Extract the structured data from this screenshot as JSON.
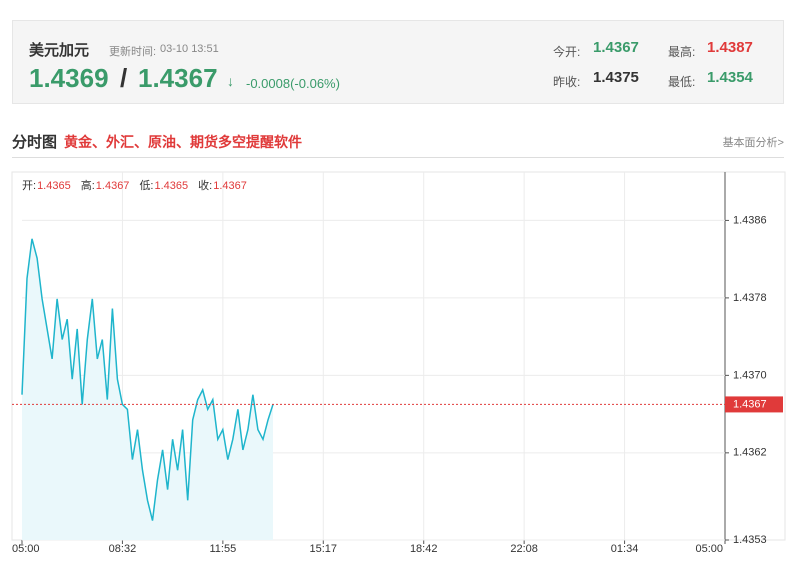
{
  "header": {
    "name": "美元加元",
    "update_label": "更新时间:",
    "update_time": "03-10 13:51",
    "bid": "1.4369",
    "sep": "/",
    "ask": "1.4367",
    "arrow": "↓",
    "change": "-0.0008(-0.06%)",
    "stats": [
      {
        "label": "今开:",
        "value": "1.4367"
      },
      {
        "label": "最高:",
        "value": "1.4387"
      },
      {
        "label": "昨收:",
        "value": "1.4375"
      },
      {
        "label": "最低:",
        "value": "1.4354"
      }
    ]
  },
  "section": {
    "title": "分时图",
    "promo": "黄金、外汇、原油、期货多空提醒软件",
    "link": "基本面分析>"
  },
  "chart_data": {
    "type": "line",
    "legend": [
      {
        "label": "开:",
        "value": "1.4365"
      },
      {
        "label": "高:",
        "value": "1.4367"
      },
      {
        "label": "低:",
        "value": "1.4365"
      },
      {
        "label": "收:",
        "value": "1.4367"
      }
    ],
    "series": [
      {
        "color": "#1fb5cc",
        "values": [
          1.4368,
          1.438,
          1.43841,
          1.43821,
          1.43779,
          1.43748,
          1.43717,
          1.43779,
          1.43737,
          1.43758,
          1.43696,
          1.43748,
          1.4367,
          1.43737,
          1.43779,
          1.43717,
          1.43737,
          1.43675,
          1.43769,
          1.43696,
          1.4367,
          1.43665,
          1.43613,
          1.43644,
          1.43602,
          1.43571,
          1.4355,
          1.43592,
          1.43623,
          1.43582,
          1.43634,
          1.43602,
          1.43644,
          1.43571,
          1.43654,
          1.43675,
          1.43685,
          1.43665,
          1.43675,
          1.43634,
          1.43644,
          1.43613,
          1.43634,
          1.43665,
          1.43623,
          1.43644,
          1.4368,
          1.43644,
          1.43634,
          1.43654,
          1.4367
        ]
      }
    ],
    "ylim": [
      1.4353,
      1.4391
    ],
    "yticks": [
      1.4386,
      1.4378,
      {
        "value": 1.437,
        "label": "1.4370"
      },
      1.4362,
      1.4353
    ],
    "xticks": [
      "05:00",
      "08:32",
      "11:55",
      "15:17",
      "18:42",
      "22:08",
      "01:34",
      "05:00"
    ],
    "reference": {
      "value": 1.4367,
      "label": "1.4367",
      "color": "#e03a3a"
    },
    "grid": true
  }
}
